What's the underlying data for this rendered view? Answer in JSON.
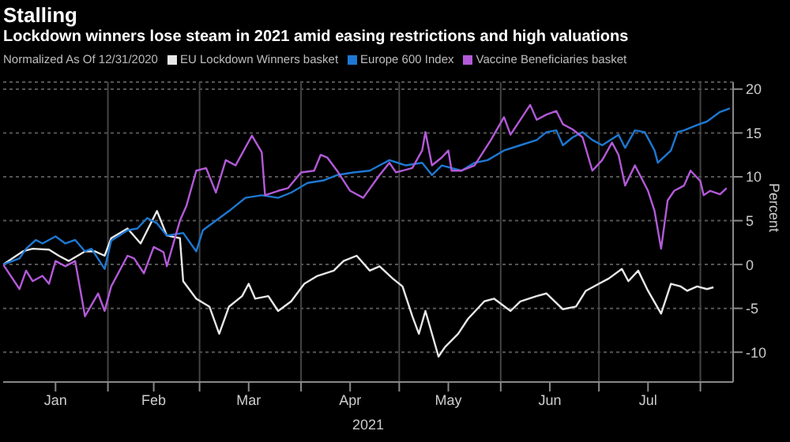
{
  "chart_data": {
    "type": "line",
    "title": "Stalling",
    "subtitle": "Lockdown winners lose steam in 2021 amid easing restrictions and high valuations",
    "legend_title": "Normalized As Of 12/31/2020",
    "ylabel": "Percent",
    "xlabel": "2021",
    "legend": "top left",
    "grid": true,
    "marker": "none",
    "line_style": "solid",
    "xlim": [
      "2020-12-31",
      "2021-08-11"
    ],
    "xticks": [
      {
        "value": "2021-01-16",
        "label": "Jan"
      },
      {
        "value": "2021-02-01",
        "label": null
      },
      {
        "value": "2021-02-15",
        "label": "Feb"
      },
      {
        "value": "2021-03-01",
        "label": null
      },
      {
        "value": "2021-03-16",
        "label": "Mar"
      },
      {
        "value": "2021-04-01",
        "label": null
      },
      {
        "value": "2021-04-16",
        "label": "Apr"
      },
      {
        "value": "2021-05-01",
        "label": null
      },
      {
        "value": "2021-05-16",
        "label": "May"
      },
      {
        "value": "2021-06-01",
        "label": null
      },
      {
        "value": "2021-06-16",
        "label": "Jun"
      },
      {
        "value": "2021-07-01",
        "label": null
      },
      {
        "value": "2021-07-16",
        "label": "Jul"
      },
      {
        "value": "2021-08-01",
        "label": null
      }
    ],
    "ylim": [
      -13.4,
      20.8
    ],
    "yticks": [
      -10,
      -5,
      0,
      5,
      10,
      15,
      20
    ],
    "series": [
      {
        "name": "EU Lockdown Winners basket",
        "color": "#e8e8e8",
        "x": [
          "2020-12-31",
          "2021-01-06",
          "2021-01-09",
          "2021-01-14",
          "2021-01-17",
          "2021-01-20",
          "2021-01-25",
          "2021-01-28",
          "2021-01-31",
          "2021-02-02",
          "2021-02-07",
          "2021-02-11",
          "2021-02-16",
          "2021-02-19",
          "2021-02-23",
          "2021-02-24",
          "2021-02-28",
          "2021-03-04",
          "2021-03-07",
          "2021-03-10",
          "2021-03-14",
          "2021-03-16",
          "2021-03-18",
          "2021-03-22",
          "2021-03-25",
          "2021-03-29",
          "2021-04-02",
          "2021-04-06",
          "2021-04-11",
          "2021-04-14",
          "2021-04-18",
          "2021-04-22",
          "2021-04-25",
          "2021-04-29",
          "2021-05-02",
          "2021-05-05",
          "2021-05-07",
          "2021-05-09",
          "2021-05-13",
          "2021-05-15",
          "2021-05-19",
          "2021-05-22",
          "2021-05-27",
          "2021-05-30",
          "2021-06-04",
          "2021-06-07",
          "2021-06-12",
          "2021-06-15",
          "2021-06-20",
          "2021-06-24",
          "2021-06-27",
          "2021-07-01",
          "2021-07-04",
          "2021-07-08",
          "2021-07-10",
          "2021-07-13",
          "2021-07-16",
          "2021-07-20",
          "2021-07-23",
          "2021-07-26",
          "2021-07-28",
          "2021-07-31",
          "2021-08-03",
          "2021-08-05"
        ],
        "values": [
          0,
          1.5,
          1.8,
          1.7,
          1.0,
          0.4,
          1.5,
          1.5,
          1.0,
          3.0,
          4.1,
          2.4,
          6.1,
          3.3,
          3.0,
          -1.9,
          -3.9,
          -4.8,
          -7.9,
          -4.8,
          -3.6,
          -2.2,
          -3.9,
          -3.6,
          -5.3,
          -4.2,
          -2.2,
          -1.3,
          -0.7,
          0.4,
          1.0,
          -0.7,
          -0.2,
          -1.6,
          -2.5,
          -5.9,
          -7.9,
          -5.3,
          -10.5,
          -9.4,
          -7.9,
          -6.2,
          -4.2,
          -3.9,
          -5.3,
          -4.2,
          -3.6,
          -3.3,
          -5.1,
          -4.8,
          -3.0,
          -2.2,
          -1.6,
          -0.5,
          -1.9,
          -0.7,
          -3.0,
          -5.6,
          -2.2,
          -2.5,
          -3.0,
          -2.5,
          -2.8,
          -2.6
        ]
      },
      {
        "name": "Europe 600 Index",
        "color": "#1e78d2",
        "x": [
          "2020-12-31",
          "2021-01-05",
          "2021-01-07",
          "2021-01-10",
          "2021-01-12",
          "2021-01-16",
          "2021-01-19",
          "2021-01-22",
          "2021-01-25",
          "2021-01-27",
          "2021-01-31",
          "2021-02-02",
          "2021-02-07",
          "2021-02-10",
          "2021-02-13",
          "2021-02-16",
          "2021-02-19",
          "2021-02-24",
          "2021-02-28",
          "2021-03-02",
          "2021-03-06",
          "2021-03-10",
          "2021-03-15",
          "2021-03-20",
          "2021-03-25",
          "2021-03-29",
          "2021-04-03",
          "2021-04-08",
          "2021-04-12",
          "2021-04-17",
          "2021-04-22",
          "2021-04-25",
          "2021-04-28",
          "2021-05-03",
          "2021-05-08",
          "2021-05-11",
          "2021-05-14",
          "2021-05-20",
          "2021-05-24",
          "2021-05-28",
          "2021-06-02",
          "2021-06-07",
          "2021-06-12",
          "2021-06-15",
          "2021-06-18",
          "2021-06-20",
          "2021-06-23",
          "2021-06-26",
          "2021-06-29",
          "2021-07-02",
          "2021-07-07",
          "2021-07-09",
          "2021-07-12",
          "2021-07-15",
          "2021-07-18",
          "2021-07-19",
          "2021-07-23",
          "2021-07-25",
          "2021-07-27",
          "2021-07-31",
          "2021-08-03",
          "2021-08-07",
          "2021-08-10"
        ],
        "values": [
          0,
          0.7,
          1.8,
          2.8,
          2.4,
          3.2,
          2.4,
          2.8,
          1.5,
          1.8,
          -0.5,
          2.7,
          3.9,
          4.1,
          5.3,
          4.7,
          3.3,
          3.6,
          1.5,
          3.9,
          5.0,
          6.1,
          7.6,
          7.9,
          7.6,
          8.2,
          9.3,
          9.6,
          10.2,
          10.5,
          10.7,
          11.3,
          11.9,
          11.3,
          11.6,
          10.2,
          11.3,
          10.7,
          11.6,
          11.9,
          13.0,
          13.6,
          14.2,
          15.1,
          15.3,
          13.6,
          14.5,
          15.1,
          14.2,
          13.6,
          14.8,
          13.3,
          15.3,
          15.1,
          13.0,
          11.6,
          13.0,
          15.1,
          15.3,
          15.9,
          16.3,
          17.4,
          17.8
        ]
      },
      {
        "name": "Vaccine Beneficiaries basket",
        "color": "#b35ad8",
        "x": [
          "2020-12-31",
          "2021-01-05",
          "2021-01-07",
          "2021-01-09",
          "2021-01-12",
          "2021-01-14",
          "2021-01-16",
          "2021-01-19",
          "2021-01-22",
          "2021-01-25",
          "2021-01-29",
          "2021-01-31",
          "2021-02-02",
          "2021-02-07",
          "2021-02-09",
          "2021-02-12",
          "2021-02-15",
          "2021-02-18",
          "2021-02-19",
          "2021-02-23",
          "2021-02-25",
          "2021-02-28",
          "2021-03-03",
          "2021-03-06",
          "2021-03-09",
          "2021-03-12",
          "2021-03-17",
          "2021-03-20",
          "2021-03-21",
          "2021-03-25",
          "2021-03-28",
          "2021-04-01",
          "2021-04-05",
          "2021-04-07",
          "2021-04-09",
          "2021-04-12",
          "2021-04-16",
          "2021-04-20",
          "2021-04-25",
          "2021-04-28",
          "2021-04-30",
          "2021-05-05",
          "2021-05-08",
          "2021-05-09",
          "2021-05-11",
          "2021-05-14",
          "2021-05-16",
          "2021-05-17",
          "2021-05-20",
          "2021-05-24",
          "2021-05-29",
          "2021-06-02",
          "2021-06-04",
          "2021-06-10",
          "2021-06-12",
          "2021-06-15",
          "2021-06-18",
          "2021-06-20",
          "2021-06-23",
          "2021-06-26",
          "2021-06-29",
          "2021-07-02",
          "2021-07-05",
          "2021-07-07",
          "2021-07-09",
          "2021-07-12",
          "2021-07-16",
          "2021-07-18",
          "2021-07-20",
          "2021-07-22",
          "2021-07-24",
          "2021-07-27",
          "2021-07-29",
          "2021-08-01",
          "2021-08-02",
          "2021-08-04",
          "2021-08-07",
          "2021-08-09"
        ],
        "values": [
          0,
          -2.8,
          -0.7,
          -1.9,
          -1.3,
          -2.2,
          0.4,
          -0.2,
          0.4,
          -5.9,
          -3.3,
          -5.3,
          -2.5,
          1.0,
          0.7,
          -1.0,
          2.0,
          1.4,
          -0.2,
          5.0,
          6.7,
          10.7,
          11.0,
          8.2,
          11.9,
          11.3,
          14.7,
          12.8,
          7.9,
          8.4,
          8.7,
          10.5,
          10.7,
          12.5,
          12.2,
          10.7,
          8.4,
          7.6,
          10.2,
          11.6,
          10.5,
          11.0,
          13.0,
          15.1,
          11.3,
          12.2,
          13.0,
          10.7,
          10.7,
          11.3,
          14.2,
          16.8,
          14.8,
          18.2,
          16.5,
          17.1,
          17.5,
          16.0,
          15.4,
          14.5,
          10.7,
          11.9,
          13.9,
          12.5,
          9.0,
          11.3,
          8.4,
          6.1,
          1.8,
          7.3,
          8.4,
          9.0,
          10.7,
          9.5,
          7.9,
          8.4,
          8.0,
          8.7
        ]
      }
    ]
  }
}
